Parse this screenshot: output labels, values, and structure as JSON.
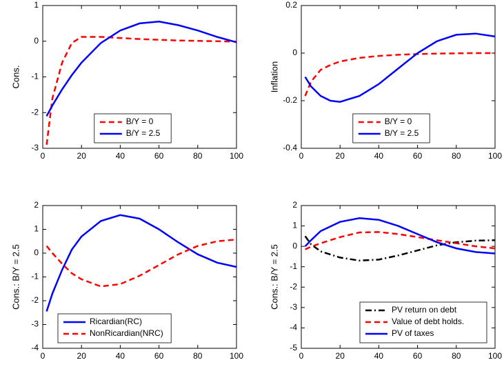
{
  "chart_data": [
    {
      "type": "line",
      "ylabel": "Cons.",
      "x": [
        2,
        5,
        10,
        15,
        20,
        30,
        40,
        50,
        60,
        70,
        80,
        90,
        100
      ],
      "series": [
        {
          "name": "B/Y = 0",
          "color": "#ff0000",
          "style": "dashed",
          "values": [
            -2.9,
            -1.6,
            -0.6,
            -0.05,
            0.12,
            0.12,
            0.09,
            0.06,
            0.04,
            0.02,
            0.01,
            0.0,
            -0.01
          ]
        },
        {
          "name": "B/Y = 2.5",
          "color": "#0000ff",
          "style": "solid",
          "values": [
            -2.1,
            -1.8,
            -1.35,
            -0.95,
            -0.6,
            -0.05,
            0.3,
            0.5,
            0.55,
            0.45,
            0.3,
            0.12,
            -0.03
          ]
        }
      ],
      "xlim": [
        0,
        100
      ],
      "xticks": [
        0,
        20,
        40,
        60,
        80,
        100
      ],
      "ylim": [
        -3,
        1
      ],
      "yticks": [
        -3,
        -2,
        -1,
        0,
        1
      ],
      "legend": "lower center"
    },
    {
      "type": "line",
      "ylabel": "Inflation",
      "x": [
        2,
        5,
        10,
        15,
        20,
        30,
        40,
        50,
        60,
        70,
        80,
        90,
        100
      ],
      "series": [
        {
          "name": "B/Y = 0",
          "color": "#ff0000",
          "style": "dashed",
          "values": [
            -0.18,
            -0.12,
            -0.07,
            -0.05,
            -0.035,
            -0.02,
            -0.012,
            -0.007,
            -0.004,
            -0.002,
            -0.001,
            0,
            0
          ]
        },
        {
          "name": "B/Y = 2.5",
          "color": "#0000ff",
          "style": "solid",
          "values": [
            -0.1,
            -0.14,
            -0.18,
            -0.2,
            -0.205,
            -0.18,
            -0.13,
            -0.065,
            0,
            0.05,
            0.077,
            0.082,
            0.07
          ]
        }
      ],
      "xlim": [
        0,
        100
      ],
      "xticks": [
        0,
        20,
        40,
        60,
        80,
        100
      ],
      "ylim": [
        -0.4,
        0.2
      ],
      "yticks": [
        -0.4,
        -0.2,
        0,
        0.2
      ],
      "legend": "lower center"
    },
    {
      "type": "line",
      "ylabel": "Cons.: B/Y = 2.5",
      "x": [
        2,
        5,
        10,
        15,
        20,
        30,
        40,
        50,
        60,
        70,
        80,
        90,
        100
      ],
      "series": [
        {
          "name": "Ricardian(RC)",
          "color": "#0000ff",
          "style": "solid",
          "values": [
            -2.45,
            -1.7,
            -0.7,
            0.15,
            0.7,
            1.35,
            1.6,
            1.45,
            1.0,
            0.45,
            -0.05,
            -0.4,
            -0.58
          ]
        },
        {
          "name": "NonRicardian(NRC)",
          "color": "#ff0000",
          "style": "dashed",
          "values": [
            0.3,
            0.0,
            -0.45,
            -0.85,
            -1.1,
            -1.4,
            -1.3,
            -0.95,
            -0.5,
            -0.05,
            0.3,
            0.5,
            0.57
          ]
        }
      ],
      "xlim": [
        0,
        100
      ],
      "xticks": [
        0,
        20,
        40,
        60,
        80,
        100
      ],
      "ylim": [
        -4,
        2
      ],
      "yticks": [
        -4,
        -3,
        -2,
        -1,
        0,
        1,
        2
      ],
      "legend": "lower left"
    },
    {
      "type": "line",
      "ylabel": "Cons.: B/Y = 2.5",
      "x": [
        2,
        5,
        10,
        20,
        30,
        40,
        50,
        60,
        70,
        80,
        90,
        100
      ],
      "series": [
        {
          "name": "PV return on debt",
          "color": "#000000",
          "style": "dashdot",
          "values": [
            0.5,
            0.1,
            -0.25,
            -0.55,
            -0.7,
            -0.65,
            -0.45,
            -0.2,
            0.05,
            0.2,
            0.28,
            0.3
          ]
        },
        {
          "name": "Value of debt holds.",
          "color": "#ff0000",
          "style": "dashed",
          "values": [
            -0.15,
            -0.02,
            0.15,
            0.45,
            0.68,
            0.7,
            0.6,
            0.45,
            0.3,
            0.15,
            0.0,
            -0.1
          ]
        },
        {
          "name": "PV of taxes",
          "color": "#0000ff",
          "style": "solid",
          "values": [
            0,
            0.3,
            0.75,
            1.2,
            1.38,
            1.3,
            1.0,
            0.6,
            0.2,
            -0.1,
            -0.28,
            -0.35
          ]
        }
      ],
      "xlim": [
        0,
        100
      ],
      "xticks": [
        0,
        20,
        40,
        60,
        80,
        100
      ],
      "ylim": [
        -5,
        2
      ],
      "yticks": [
        -5,
        -4,
        -3,
        -2,
        -1,
        0,
        1,
        2
      ],
      "legend": "lower right"
    }
  ]
}
